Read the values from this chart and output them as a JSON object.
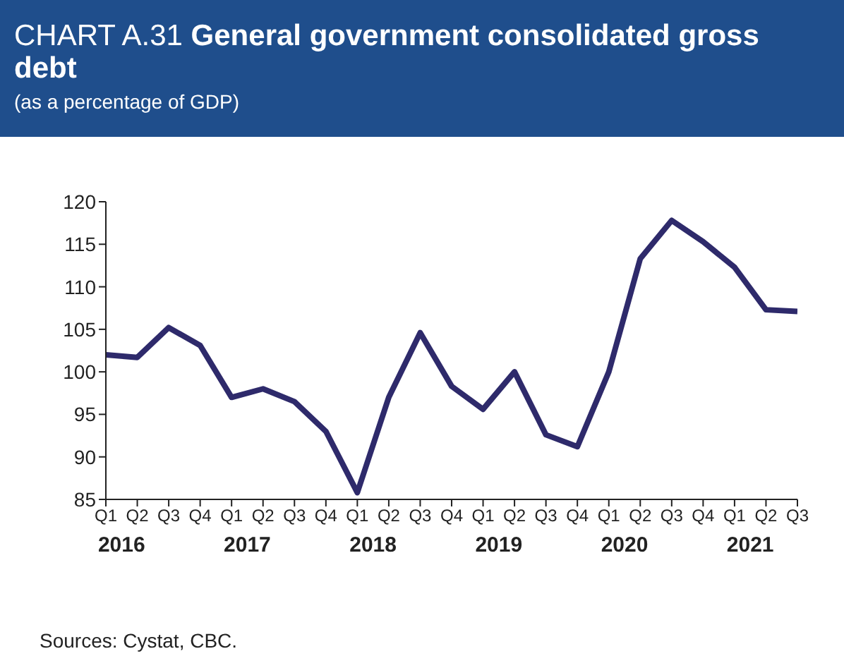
{
  "chart_data": {
    "type": "line",
    "title": "CHART A.31 General government  consolidated gross debt",
    "subtitle": "(as a percentage of GDP)",
    "categories": [
      "Q1",
      "Q2",
      "Q3",
      "Q4",
      "Q1",
      "Q2",
      "Q3",
      "Q4",
      "Q1",
      "Q2",
      "Q3",
      "Q4",
      "Q1",
      "Q2",
      "Q3",
      "Q4",
      "Q1",
      "Q2",
      "Q3",
      "Q4",
      "Q1",
      "Q2",
      "Q3"
    ],
    "series": [
      {
        "color": "#2e2a6b",
        "values": [
          102,
          101.7,
          105.2,
          103.1,
          97,
          98,
          96.5,
          93,
          85.8,
          97,
          104.6,
          98.3,
          95.6,
          100,
          92.6,
          91.2,
          100,
          113.3,
          117.8,
          115.3,
          112.3,
          107.3,
          107.1
        ]
      }
    ],
    "ylim": [
      85,
      120
    ],
    "yticks": [
      85,
      90,
      95,
      100,
      105,
      110,
      115,
      120
    ],
    "grid": false,
    "legend": false,
    "marker": "none",
    "line_style": "solid",
    "annotations": [
      "2016",
      "2017",
      "2018",
      "2019",
      "2020",
      "2021",
      "Sources: Cystat, CBC."
    ]
  }
}
